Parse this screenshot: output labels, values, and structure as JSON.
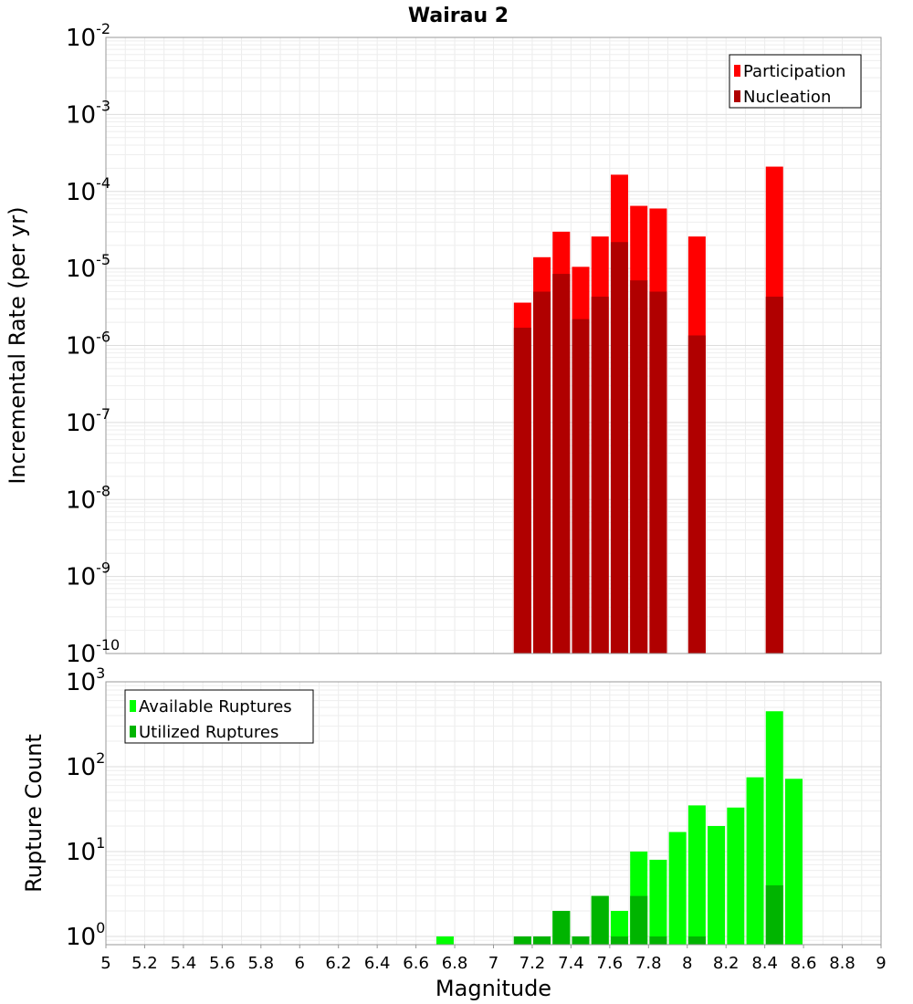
{
  "chart_data": [
    {
      "type": "bar",
      "title": "Wairau 2",
      "ylabel": "Incremental Rate (per yr)",
      "xlim": [
        5,
        9
      ],
      "ylim": [
        1e-10,
        0.01
      ],
      "yscale": "log",
      "grid": true,
      "legend_position": "top-right",
      "y_ticks": [
        {
          "base": "10",
          "exp": "-10",
          "value": 1e-10
        },
        {
          "base": "10",
          "exp": "-9",
          "value": 1e-09
        },
        {
          "base": "10",
          "exp": "-8",
          "value": 1e-08
        },
        {
          "base": "10",
          "exp": "-7",
          "value": 1e-07
        },
        {
          "base": "10",
          "exp": "-6",
          "value": 1e-06
        },
        {
          "base": "10",
          "exp": "-5",
          "value": 1e-05
        },
        {
          "base": "10",
          "exp": "-4",
          "value": 0.0001
        },
        {
          "base": "10",
          "exp": "-3",
          "value": 0.001
        },
        {
          "base": "10",
          "exp": "-2",
          "value": 0.01
        }
      ],
      "series": [
        {
          "name": "Participation",
          "color": "#ff0000",
          "points": [
            {
              "x": 7.15,
              "y": 3.6e-06
            },
            {
              "x": 7.25,
              "y": 1.4e-05
            },
            {
              "x": 7.35,
              "y": 3e-05
            },
            {
              "x": 7.45,
              "y": 1.05e-05
            },
            {
              "x": 7.55,
              "y": 2.6e-05
            },
            {
              "x": 7.65,
              "y": 0.000165
            },
            {
              "x": 7.75,
              "y": 6.5e-05
            },
            {
              "x": 7.85,
              "y": 6e-05
            },
            {
              "x": 8.05,
              "y": 2.6e-05
            },
            {
              "x": 8.45,
              "y": 0.00021
            }
          ]
        },
        {
          "name": "Nucleation",
          "color": "#b00000",
          "points": [
            {
              "x": 7.15,
              "y": 1.7e-06
            },
            {
              "x": 7.25,
              "y": 5e-06
            },
            {
              "x": 7.35,
              "y": 8.5e-06
            },
            {
              "x": 7.45,
              "y": 2.2e-06
            },
            {
              "x": 7.55,
              "y": 4.3e-06
            },
            {
              "x": 7.65,
              "y": 2.2e-05
            },
            {
              "x": 7.75,
              "y": 7e-06
            },
            {
              "x": 7.85,
              "y": 5e-06
            },
            {
              "x": 8.05,
              "y": 1.35e-06
            },
            {
              "x": 8.45,
              "y": 4.3e-06
            }
          ]
        }
      ]
    },
    {
      "type": "bar",
      "xlabel": "Magnitude",
      "ylabel": "Rupture Count",
      "xlim": [
        5,
        9
      ],
      "ylim": [
        0.8,
        1000
      ],
      "yscale": "log",
      "grid": true,
      "legend_position": "top-left",
      "x_ticks": [
        "5",
        "5.2",
        "5.4",
        "5.6",
        "5.8",
        "6",
        "6.2",
        "6.4",
        "6.6",
        "6.8",
        "7",
        "7.2",
        "7.4",
        "7.6",
        "7.8",
        "8",
        "8.2",
        "8.4",
        "8.6",
        "8.8",
        "9"
      ],
      "y_ticks": [
        {
          "base": "10",
          "exp": "0",
          "value": 1
        },
        {
          "base": "10",
          "exp": "1",
          "value": 10
        },
        {
          "base": "10",
          "exp": "2",
          "value": 100
        },
        {
          "base": "10",
          "exp": "3",
          "value": 1000
        }
      ],
      "series": [
        {
          "name": "Available Ruptures",
          "color": "#00ff00",
          "points": [
            {
              "x": 6.75,
              "y": 1
            },
            {
              "x": 7.15,
              "y": 1
            },
            {
              "x": 7.25,
              "y": 1
            },
            {
              "x": 7.35,
              "y": 2
            },
            {
              "x": 7.45,
              "y": 1
            },
            {
              "x": 7.55,
              "y": 3
            },
            {
              "x": 7.65,
              "y": 2
            },
            {
              "x": 7.75,
              "y": 10
            },
            {
              "x": 7.85,
              "y": 8
            },
            {
              "x": 7.95,
              "y": 17
            },
            {
              "x": 8.05,
              "y": 35
            },
            {
              "x": 8.15,
              "y": 20
            },
            {
              "x": 8.25,
              "y": 33
            },
            {
              "x": 8.35,
              "y": 75
            },
            {
              "x": 8.45,
              "y": 450
            },
            {
              "x": 8.55,
              "y": 72
            }
          ]
        },
        {
          "name": "Utilized Ruptures",
          "color": "#00b400",
          "points": [
            {
              "x": 7.15,
              "y": 1
            },
            {
              "x": 7.25,
              "y": 1
            },
            {
              "x": 7.35,
              "y": 2
            },
            {
              "x": 7.45,
              "y": 1
            },
            {
              "x": 7.55,
              "y": 3
            },
            {
              "x": 7.65,
              "y": 1
            },
            {
              "x": 7.75,
              "y": 3
            },
            {
              "x": 7.85,
              "y": 1
            },
            {
              "x": 8.05,
              "y": 1
            },
            {
              "x": 8.45,
              "y": 4
            }
          ]
        }
      ]
    }
  ]
}
